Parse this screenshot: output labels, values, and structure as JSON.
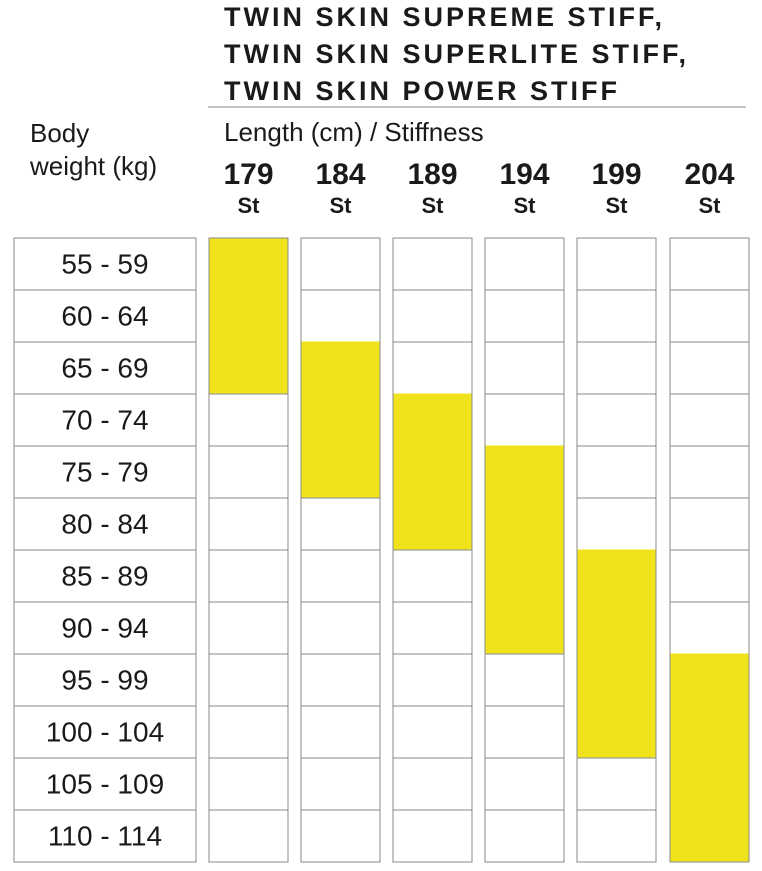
{
  "header": {
    "title_lines": [
      "TWIN SKIN SUPREME STIFF,",
      "TWIN SKIN SUPERLITE STIFF,",
      "TWIN SKIN POWER STIFF"
    ],
    "row_header": [
      "Body",
      "weight (kg)"
    ],
    "column_header": "Length (cm) / Stiffness"
  },
  "table": {
    "columns": [
      {
        "length": "179",
        "stiffness": "St"
      },
      {
        "length": "184",
        "stiffness": "St"
      },
      {
        "length": "189",
        "stiffness": "St"
      },
      {
        "length": "194",
        "stiffness": "St"
      },
      {
        "length": "199",
        "stiffness": "St"
      },
      {
        "length": "204",
        "stiffness": "St"
      }
    ],
    "rows": [
      {
        "weight": "55 - 59",
        "recommended": [
          true,
          false,
          false,
          false,
          false,
          false
        ]
      },
      {
        "weight": "60 - 64",
        "recommended": [
          true,
          false,
          false,
          false,
          false,
          false
        ]
      },
      {
        "weight": "65 - 69",
        "recommended": [
          true,
          true,
          false,
          false,
          false,
          false
        ]
      },
      {
        "weight": "70 - 74",
        "recommended": [
          false,
          true,
          true,
          false,
          false,
          false
        ]
      },
      {
        "weight": "75 - 79",
        "recommended": [
          false,
          true,
          true,
          true,
          false,
          false
        ]
      },
      {
        "weight": "80 - 84",
        "recommended": [
          false,
          false,
          true,
          true,
          false,
          false
        ]
      },
      {
        "weight": "85 - 89",
        "recommended": [
          false,
          false,
          false,
          true,
          true,
          false
        ]
      },
      {
        "weight": "90 - 94",
        "recommended": [
          false,
          false,
          false,
          true,
          true,
          false
        ]
      },
      {
        "weight": "95 - 99",
        "recommended": [
          false,
          false,
          false,
          false,
          true,
          true
        ]
      },
      {
        "weight": "100 - 104",
        "recommended": [
          false,
          false,
          false,
          false,
          true,
          true
        ]
      },
      {
        "weight": "105 - 109",
        "recommended": [
          false,
          false,
          false,
          false,
          false,
          true
        ]
      },
      {
        "weight": "110 - 114",
        "recommended": [
          false,
          false,
          false,
          false,
          false,
          true
        ]
      }
    ]
  }
}
